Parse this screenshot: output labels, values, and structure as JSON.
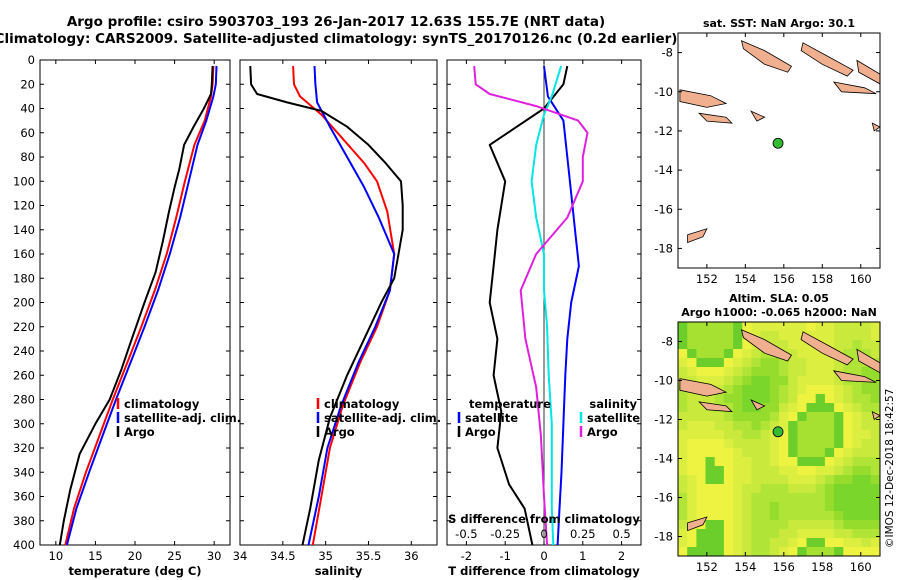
{
  "header": {
    "line1": "Argo profile: csiro 5903703_193 26-Jan-2017 12.63S 155.7E (NRT data)",
    "line2": "Climatology: CARS2009. Satellite-adjusted climatology: synTS_20170126.nc (0.2d earlier)"
  },
  "colors": {
    "argo": "#000000",
    "climatology": "#ff0000",
    "satellite": "#0000ff",
    "salinity_diff_sat": "#00e5e5",
    "salinity_diff_clim": "#e020e0",
    "land": "#f0b090",
    "marker": "#33bb33"
  },
  "chart_data": [
    {
      "id": "temperature",
      "type": "line",
      "xlabel": "temperature (deg C)",
      "xlim": [
        8,
        32
      ],
      "ylim": [
        0,
        400
      ],
      "y_inverted": true,
      "xticks": [
        10,
        15,
        20,
        25,
        30
      ],
      "yticks": [
        0,
        20,
        40,
        60,
        80,
        100,
        120,
        140,
        160,
        180,
        200,
        220,
        240,
        260,
        280,
        300,
        320,
        340,
        360,
        380,
        400
      ],
      "legend": [
        "climatology",
        "satellite-adj. clim.",
        "Argo"
      ],
      "series": [
        {
          "name": "climatology",
          "color_key": "climatology",
          "points": [
            [
              29.9,
              5
            ],
            [
              29.8,
              20
            ],
            [
              29.6,
              30
            ],
            [
              28.8,
              50
            ],
            [
              27.5,
              70
            ],
            [
              26.3,
              100
            ],
            [
              25.2,
              130
            ],
            [
              24.0,
              160
            ],
            [
              22.5,
              190
            ],
            [
              20.8,
              220
            ],
            [
              19.0,
              250
            ],
            [
              17.2,
              280
            ],
            [
              15.5,
              310
            ],
            [
              13.8,
              340
            ],
            [
              12.3,
              370
            ],
            [
              11.2,
              400
            ]
          ]
        },
        {
          "name": "satellite-adj. clim.",
          "color_key": "satellite",
          "points": [
            [
              30.3,
              5
            ],
            [
              30.2,
              20
            ],
            [
              29.9,
              30
            ],
            [
              29.0,
              50
            ],
            [
              27.9,
              70
            ],
            [
              26.8,
              100
            ],
            [
              25.7,
              130
            ],
            [
              24.4,
              160
            ],
            [
              22.9,
              190
            ],
            [
              21.2,
              220
            ],
            [
              19.4,
              250
            ],
            [
              17.6,
              280
            ],
            [
              15.9,
              310
            ],
            [
              14.2,
              340
            ],
            [
              12.6,
              370
            ],
            [
              11.4,
              400
            ]
          ]
        },
        {
          "name": "Argo",
          "color_key": "argo",
          "points": [
            [
              29.8,
              5
            ],
            [
              29.7,
              20
            ],
            [
              29.6,
              28
            ],
            [
              28.7,
              40
            ],
            [
              27.4,
              55
            ],
            [
              26.2,
              70
            ],
            [
              25.6,
              90
            ],
            [
              25.0,
              105
            ],
            [
              24.3,
              125
            ],
            [
              23.5,
              150
            ],
            [
              22.6,
              175
            ],
            [
              21.2,
              200
            ],
            [
              19.6,
              230
            ],
            [
              18.3,
              255
            ],
            [
              16.8,
              280
            ],
            [
              15.0,
              300
            ],
            [
              13.0,
              325
            ],
            [
              11.8,
              355
            ],
            [
              11.0,
              380
            ],
            [
              10.5,
              400
            ]
          ]
        }
      ]
    },
    {
      "id": "salinity",
      "type": "line",
      "xlabel": "salinity",
      "xlim": [
        34.0,
        36.3
      ],
      "ylim": [
        0,
        400
      ],
      "y_inverted": true,
      "xticks": [
        34,
        34.5,
        35,
        35.5,
        36
      ],
      "xtick_labels": [
        "34",
        "34.5",
        "35",
        "35.5",
        "36"
      ],
      "legend": [
        "climatology",
        "satellite-adj. clim.",
        "Argo"
      ],
      "series": [
        {
          "name": "climatology",
          "color_key": "climatology",
          "points": [
            [
              34.62,
              5
            ],
            [
              34.63,
              20
            ],
            [
              34.7,
              30
            ],
            [
              34.95,
              45
            ],
            [
              35.2,
              65
            ],
            [
              35.45,
              85
            ],
            [
              35.6,
              100
            ],
            [
              35.72,
              125
            ],
            [
              35.8,
              160
            ],
            [
              35.75,
              190
            ],
            [
              35.6,
              220
            ],
            [
              35.4,
              250
            ],
            [
              35.2,
              285
            ],
            [
              35.05,
              320
            ],
            [
              34.95,
              360
            ],
            [
              34.85,
              400
            ]
          ]
        },
        {
          "name": "satellite-adj. clim.",
          "color_key": "satellite",
          "points": [
            [
              34.87,
              5
            ],
            [
              34.88,
              20
            ],
            [
              34.9,
              35
            ],
            [
              35.05,
              55
            ],
            [
              35.25,
              80
            ],
            [
              35.45,
              105
            ],
            [
              35.62,
              130
            ],
            [
              35.8,
              160
            ],
            [
              35.75,
              190
            ],
            [
              35.58,
              220
            ],
            [
              35.38,
              250
            ],
            [
              35.18,
              285
            ],
            [
              35.02,
              320
            ],
            [
              34.92,
              360
            ],
            [
              34.8,
              400
            ]
          ]
        },
        {
          "name": "Argo",
          "color_key": "argo",
          "points": [
            [
              34.12,
              5
            ],
            [
              34.13,
              20
            ],
            [
              34.2,
              28
            ],
            [
              34.55,
              35
            ],
            [
              34.95,
              42
            ],
            [
              35.25,
              55
            ],
            [
              35.5,
              70
            ],
            [
              35.7,
              85
            ],
            [
              35.88,
              100
            ],
            [
              35.9,
              120
            ],
            [
              35.9,
              140
            ],
            [
              35.85,
              160
            ],
            [
              35.8,
              180
            ],
            [
              35.65,
              200
            ],
            [
              35.45,
              230
            ],
            [
              35.25,
              260
            ],
            [
              35.05,
              295
            ],
            [
              34.92,
              330
            ],
            [
              34.82,
              370
            ],
            [
              34.73,
              400
            ]
          ]
        }
      ]
    },
    {
      "id": "difference",
      "type": "line",
      "xlabel": "T difference from climatology",
      "xlabel_top": "S difference from climatology",
      "xlim": [
        -2.5,
        2.5
      ],
      "s_xlim": [
        -0.625,
        0.625
      ],
      "ylim": [
        0,
        400
      ],
      "y_inverted": true,
      "xticks": [
        -2,
        -1,
        0,
        1,
        2
      ],
      "s_xticks": [
        -0.5,
        -0.25,
        0,
        0.25,
        0.5
      ],
      "s_xtick_labels": [
        "-0.5",
        "-0.25",
        "0",
        "0.25",
        "0.5"
      ],
      "legend_left_title": "temperature",
      "legend_right_title": "salinity",
      "legend_left": [
        "satellite",
        "Argo"
      ],
      "legend_right": [
        "satellite",
        "Argo"
      ],
      "series": [
        {
          "name": "T satellite",
          "color_key": "satellite",
          "axis": "T",
          "points": [
            [
              0.0,
              5
            ],
            [
              0.1,
              30
            ],
            [
              0.5,
              50
            ],
            [
              0.6,
              80
            ],
            [
              0.7,
              110
            ],
            [
              0.8,
              140
            ],
            [
              0.9,
              170
            ],
            [
              0.7,
              200
            ],
            [
              0.6,
              230
            ],
            [
              0.55,
              260
            ],
            [
              0.5,
              300
            ],
            [
              0.45,
              340
            ],
            [
              0.4,
              370
            ],
            [
              0.35,
              400
            ]
          ]
        },
        {
          "name": "T Argo",
          "color_key": "argo",
          "axis": "T",
          "points": [
            [
              0.6,
              5
            ],
            [
              0.5,
              20
            ],
            [
              0.0,
              40
            ],
            [
              -1.4,
              70
            ],
            [
              -1.0,
              100
            ],
            [
              -1.2,
              140
            ],
            [
              -1.3,
              170
            ],
            [
              -1.4,
              200
            ],
            [
              -1.2,
              230
            ],
            [
              -1.3,
              260
            ],
            [
              -1.1,
              290
            ],
            [
              -1.2,
              320
            ],
            [
              -0.9,
              350
            ],
            [
              -0.5,
              370
            ],
            [
              -0.3,
              400
            ]
          ]
        },
        {
          "name": "S satellite",
          "color_key": "salinity_diff_sat",
          "axis": "S",
          "points": [
            [
              0.11,
              5
            ],
            [
              0.05,
              30
            ],
            [
              0.0,
              45
            ],
            [
              -0.05,
              70
            ],
            [
              -0.08,
              100
            ],
            [
              -0.05,
              130
            ],
            [
              0.0,
              160
            ],
            [
              0.0,
              190
            ],
            [
              0.02,
              220
            ],
            [
              0.03,
              260
            ],
            [
              0.05,
              300
            ],
            [
              0.05,
              340
            ],
            [
              0.05,
              370
            ],
            [
              0.06,
              400
            ]
          ]
        },
        {
          "name": "S Argo",
          "color_key": "salinity_diff_clim",
          "axis": "S",
          "points": [
            [
              -0.45,
              5
            ],
            [
              -0.44,
              20
            ],
            [
              -0.35,
              28
            ],
            [
              -0.05,
              38
            ],
            [
              0.22,
              50
            ],
            [
              0.28,
              60
            ],
            [
              0.25,
              80
            ],
            [
              0.25,
              100
            ],
            [
              0.15,
              130
            ],
            [
              -0.05,
              160
            ],
            [
              -0.15,
              190
            ],
            [
              -0.12,
              230
            ],
            [
              -0.05,
              270
            ],
            [
              -0.02,
              310
            ],
            [
              0.0,
              360
            ],
            [
              0.02,
              400
            ]
          ]
        }
      ]
    },
    {
      "id": "map_sst",
      "type": "map",
      "title": "sat. SST: NaN Argo: 30.1",
      "xlim": [
        150.5,
        161.0
      ],
      "ylim": [
        -19.0,
        -7.0
      ],
      "xticks": [
        152,
        154,
        156,
        158,
        160
      ],
      "yticks": [
        -8,
        -10,
        -12,
        -14,
        -16,
        -18
      ],
      "argo_position": [
        155.7,
        -12.63
      ]
    },
    {
      "id": "map_sla",
      "type": "heatmap",
      "title1": "Altim. SLA: 0.05",
      "title2": "Argo h1000: -0.065 h2000: NaN",
      "xlim": [
        150.5,
        161.0
      ],
      "ylim": [
        -19.0,
        -7.0
      ],
      "xticks": [
        152,
        154,
        156,
        158,
        160
      ],
      "yticks": [
        -8,
        -10,
        -12,
        -14,
        -16,
        -18
      ],
      "argo_position": [
        155.7,
        -12.63
      ]
    }
  ],
  "credit": "©IMOS 12-Dec-2018 18:42:57"
}
